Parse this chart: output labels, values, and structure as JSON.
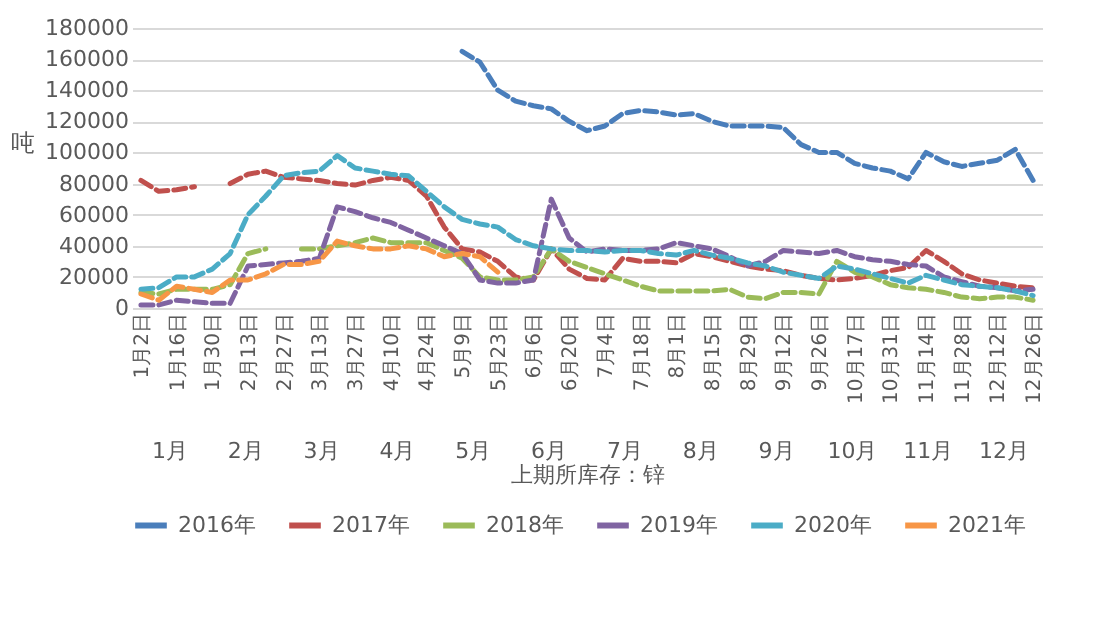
{
  "chart_data": {
    "type": "line",
    "xlabel": "上期所库存：锌",
    "ylabel": "吨",
    "categories": [
      "1月2日",
      null,
      "1月16日",
      null,
      "1月30日",
      null,
      "2月13日",
      null,
      "2月27日",
      null,
      "3月13日",
      null,
      "3月27日",
      null,
      "4月10日",
      null,
      "4月24日",
      null,
      "5月9日",
      null,
      "5月23日",
      null,
      "6月6日",
      null,
      "6月20日",
      null,
      "7月4日",
      null,
      "7月18日",
      null,
      "8月1日",
      null,
      "8月15日",
      null,
      "8月29日",
      null,
      "9月12日",
      null,
      "9月26日",
      null,
      "10月17日",
      null,
      "10月31日",
      null,
      "11月14日",
      null,
      "11月28日",
      null,
      "12月12日",
      null,
      "12月26日"
    ],
    "series": [
      {
        "name": "2016年",
        "color": "#4a7ebb",
        "values": [
          null,
          null,
          null,
          null,
          null,
          null,
          null,
          null,
          null,
          null,
          null,
          null,
          null,
          null,
          null,
          null,
          null,
          null,
          165000,
          158000,
          140000,
          133000,
          130000,
          128000,
          120000,
          114000,
          117000,
          125000,
          127000,
          126000,
          124000,
          125000,
          120000,
          117000,
          117000,
          117000,
          116000,
          105000,
          100000,
          100000,
          93000,
          90000,
          88000,
          83000,
          100000,
          94000,
          91000,
          93000,
          95000,
          102000,
          82000
        ]
      },
      {
        "name": "2017年",
        "color": "#c0504d",
        "values": [
          82000,
          75000,
          76000,
          78000,
          null,
          80000,
          86000,
          88000,
          84000,
          83000,
          82000,
          80000,
          79000,
          82000,
          84000,
          82000,
          72000,
          52000,
          38000,
          36000,
          30000,
          20000,
          18000,
          38000,
          25000,
          19000,
          18000,
          32000,
          30000,
          30000,
          29000,
          35000,
          33000,
          30000,
          27000,
          25000,
          24000,
          21000,
          19000,
          18000,
          19000,
          21000,
          24000,
          26000,
          37000,
          30000,
          22000,
          18000,
          16000,
          14000,
          13000
        ]
      },
      {
        "name": "2018年",
        "color": "#9bbb59",
        "values": [
          10000,
          9000,
          12000,
          12000,
          12000,
          15000,
          35000,
          38000,
          null,
          38000,
          38000,
          40000,
          42000,
          45000,
          42000,
          42000,
          42000,
          37000,
          32000,
          20000,
          18000,
          18000,
          20000,
          38000,
          30000,
          26000,
          22000,
          18000,
          14000,
          11000,
          11000,
          11000,
          11000,
          12000,
          7000,
          6000,
          10000,
          10000,
          9000,
          30000,
          23000,
          20000,
          15000,
          13000,
          12000,
          10000,
          7000,
          6000,
          7000,
          7000,
          5000
        ]
      },
      {
        "name": "2019年",
        "color": "#8064a2",
        "values": [
          2000,
          2000,
          5000,
          4000,
          3000,
          3000,
          27000,
          28000,
          29000,
          30000,
          32000,
          65000,
          62000,
          58000,
          55000,
          50000,
          45000,
          40000,
          35000,
          18000,
          16000,
          16000,
          18000,
          70000,
          45000,
          36000,
          38000,
          37000,
          37000,
          38000,
          42000,
          40000,
          38000,
          33000,
          27000,
          30000,
          37000,
          36000,
          35000,
          37000,
          33000,
          31000,
          30000,
          28000,
          27000,
          20000,
          17000,
          14000,
          13000,
          11000,
          12000
        ]
      },
      {
        "name": "2020年",
        "color": "#4bacc6",
        "values": [
          12000,
          13000,
          20000,
          20000,
          25000,
          35000,
          60000,
          72000,
          85000,
          87000,
          88000,
          98000,
          90000,
          88000,
          86000,
          85000,
          75000,
          65000,
          57000,
          54000,
          52000,
          44000,
          40000,
          38000,
          37000,
          37000,
          36000,
          37000,
          37000,
          35000,
          34000,
          37000,
          34000,
          32000,
          29000,
          27000,
          23000,
          21000,
          19000,
          27000,
          25000,
          22000,
          19000,
          16000,
          21000,
          18000,
          15000,
          14000,
          13000,
          11000,
          8000
        ]
      },
      {
        "name": "2021年",
        "color": "#f79646",
        "values": [
          9000,
          5000,
          14000,
          12000,
          10000,
          18000,
          18000,
          22000,
          28000,
          28000,
          30000,
          43000,
          40000,
          38000,
          38000,
          40000,
          38000,
          33000,
          35000,
          33000,
          23000,
          null,
          null,
          null,
          null,
          null,
          null,
          null,
          null,
          null,
          null,
          null,
          null,
          null,
          null,
          null,
          null,
          null,
          null,
          null,
          null,
          null,
          null,
          null,
          null,
          null,
          null,
          null,
          null,
          null,
          null
        ]
      }
    ],
    "annotations": [
      "1月",
      "2月",
      "3月",
      "4月",
      "5月",
      "6月",
      "7月",
      "8月",
      "9月",
      "10月",
      "11月",
      "12月"
    ],
    "ylim": [
      0,
      180000
    ],
    "yticks": [
      0,
      20000,
      40000,
      60000,
      80000,
      100000,
      120000,
      140000,
      160000,
      180000
    ],
    "grid": "y",
    "legend": "bottom",
    "marker": "none",
    "line_style": "dashed"
  }
}
